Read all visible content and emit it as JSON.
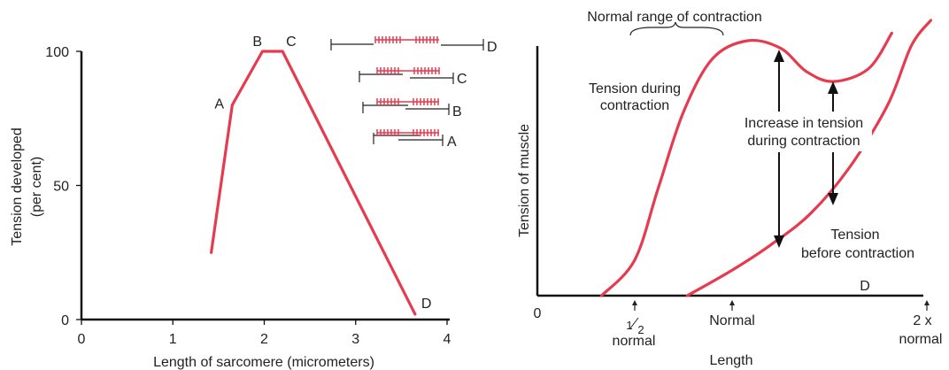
{
  "chart_data": [
    {
      "type": "line",
      "title": "",
      "xlabel": "Length of sarcomere (micrometers)",
      "ylabel_line1": "Tension developed",
      "ylabel_line2": "(per cent)",
      "xlim": [
        0,
        4
      ],
      "ylim": [
        0,
        100
      ],
      "x_ticks": [
        0,
        1,
        2,
        3,
        4
      ],
      "x_tick_labels": [
        "0",
        "1",
        "2",
        "3",
        "4"
      ],
      "y_ticks": [
        0,
        50,
        100
      ],
      "y_tick_labels": [
        "0",
        "50",
        "100"
      ],
      "series": [
        {
          "x": [
            1.42,
            1.65,
            1.98,
            2.2,
            3.65
          ],
          "y": [
            25,
            80,
            100,
            100,
            2
          ],
          "color": "#e63a4f"
        }
      ],
      "point_labels": [
        {
          "text": "A",
          "x": 1.65,
          "y": 80
        },
        {
          "text": "B",
          "x": 1.98,
          "y": 100
        },
        {
          "text": "C",
          "x": 2.2,
          "y": 100
        },
        {
          "text": "D",
          "x": 3.65,
          "y": 2
        }
      ],
      "sarcomere_diagrams": [
        {
          "label": "D"
        },
        {
          "label": "C"
        },
        {
          "label": "B"
        },
        {
          "label": "A"
        }
      ]
    },
    {
      "type": "line",
      "title": "",
      "xlabel": "Length",
      "ylabel": "Tension of muscle",
      "x_ticks": [
        0,
        0.5,
        1,
        2
      ],
      "x_tick_labels": [
        {
          "main": "0",
          "sub": ""
        },
        {
          "frac_num": "1",
          "frac_den": "2",
          "sub": "normal"
        },
        {
          "main": "Normal",
          "sub": ""
        },
        {
          "main": "2 x",
          "sub": "normal"
        }
      ],
      "series": [
        {
          "name": "Tension during contraction",
          "x": [
            0.33,
            0.5,
            0.62,
            0.75,
            0.9,
            1.08,
            1.25,
            1.38,
            1.52,
            1.7,
            1.82
          ],
          "y": [
            0,
            0.14,
            0.42,
            0.72,
            0.93,
            1.0,
            0.97,
            0.88,
            0.84,
            0.89,
            1.03
          ],
          "color": "#e63a4f"
        },
        {
          "name": "Tension before contraction",
          "x": [
            0.77,
            1.0,
            1.2,
            1.4,
            1.6,
            1.8,
            1.92,
            2.02
          ],
          "y": [
            0,
            0.1,
            0.2,
            0.32,
            0.5,
            0.75,
            0.98,
            1.08
          ],
          "color": "#e63a4f"
        }
      ],
      "annotations": {
        "range": "Normal range of contraction",
        "during_line1": "Tension during",
        "during_line2": "contraction",
        "increase_line1": "Increase in tension",
        "increase_line2": "during contraction",
        "before_line1": "Tension",
        "before_line2": "before contraction",
        "d_label": "D"
      }
    }
  ]
}
